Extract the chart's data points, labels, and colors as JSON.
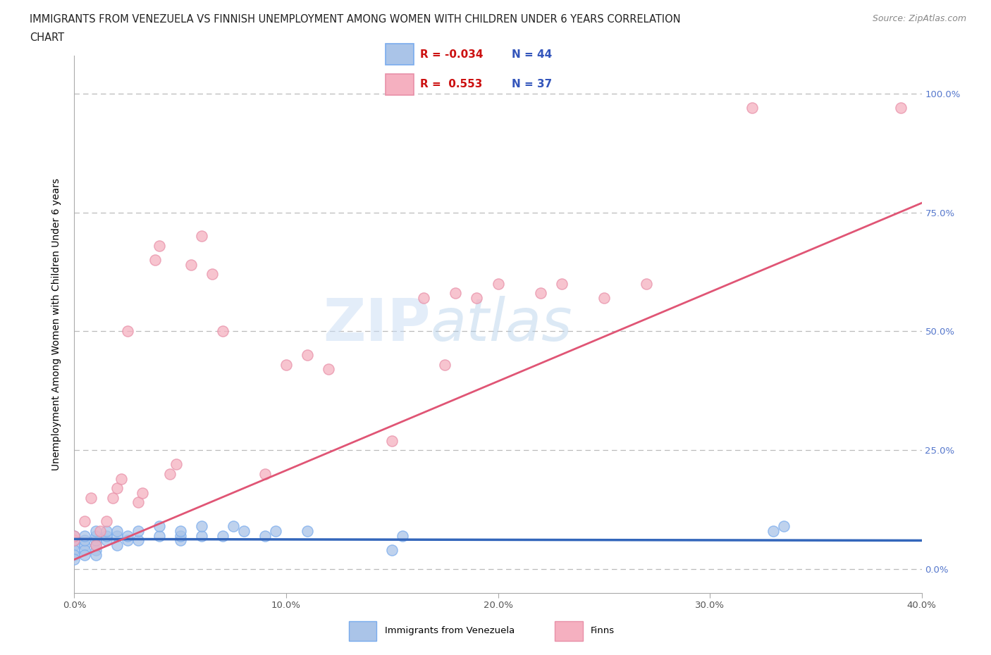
{
  "title_line1": "IMMIGRANTS FROM VENEZUELA VS FINNISH UNEMPLOYMENT AMONG WOMEN WITH CHILDREN UNDER 6 YEARS CORRELATION",
  "title_line2": "CHART",
  "source": "Source: ZipAtlas.com",
  "ylabel": "Unemployment Among Women with Children Under 6 years",
  "xlim": [
    0.0,
    0.4
  ],
  "ylim": [
    -0.05,
    1.08
  ],
  "xtick_labels": [
    "0.0%",
    "10.0%",
    "20.0%",
    "30.0%",
    "40.0%"
  ],
  "xtick_values": [
    0.0,
    0.1,
    0.2,
    0.3,
    0.4
  ],
  "ytick_labels": [
    "0.0%",
    "25.0%",
    "50.0%",
    "75.0%",
    "100.0%"
  ],
  "ytick_values": [
    0.0,
    0.25,
    0.5,
    0.75,
    1.0
  ],
  "grid_color": "#bbbbbb",
  "background_color": "#ffffff",
  "series1_color": "#aac4e8",
  "series2_color": "#f5b0c0",
  "series1_edge": "#7aaced",
  "series2_edge": "#e890a8",
  "line1_color": "#3366bb",
  "line2_color": "#e05575",
  "R1": -0.034,
  "N1": 44,
  "R2": 0.553,
  "N2": 37,
  "legend_label1": "Immigrants from Venezuela",
  "legend_label2": "Finns",
  "watermark_text": "ZIP",
  "watermark_text2": "atlas",
  "title_color": "#222222",
  "ytick_color": "#5577cc",
  "xtick_color": "#555555",
  "series1_x": [
    0.0,
    0.0,
    0.0,
    0.0,
    0.0,
    0.0,
    0.005,
    0.005,
    0.005,
    0.005,
    0.005,
    0.01,
    0.01,
    0.01,
    0.01,
    0.01,
    0.01,
    0.015,
    0.015,
    0.015,
    0.02,
    0.02,
    0.02,
    0.025,
    0.025,
    0.03,
    0.03,
    0.04,
    0.04,
    0.05,
    0.05,
    0.05,
    0.06,
    0.06,
    0.07,
    0.075,
    0.08,
    0.09,
    0.095,
    0.11,
    0.15,
    0.155,
    0.33,
    0.335
  ],
  "series1_y": [
    0.05,
    0.04,
    0.03,
    0.02,
    0.06,
    0.07,
    0.05,
    0.04,
    0.06,
    0.07,
    0.03,
    0.04,
    0.05,
    0.06,
    0.07,
    0.08,
    0.03,
    0.06,
    0.07,
    0.08,
    0.05,
    0.07,
    0.08,
    0.06,
    0.07,
    0.06,
    0.08,
    0.07,
    0.09,
    0.06,
    0.07,
    0.08,
    0.07,
    0.09,
    0.07,
    0.09,
    0.08,
    0.07,
    0.08,
    0.08,
    0.04,
    0.07,
    0.08,
    0.09
  ],
  "series2_x": [
    0.0,
    0.0,
    0.005,
    0.008,
    0.01,
    0.012,
    0.015,
    0.018,
    0.02,
    0.022,
    0.025,
    0.03,
    0.032,
    0.038,
    0.04,
    0.045,
    0.048,
    0.055,
    0.06,
    0.065,
    0.07,
    0.09,
    0.1,
    0.11,
    0.12,
    0.15,
    0.165,
    0.175,
    0.18,
    0.19,
    0.2,
    0.22,
    0.23,
    0.25,
    0.27,
    0.32,
    0.39
  ],
  "series2_y": [
    0.06,
    0.07,
    0.1,
    0.15,
    0.05,
    0.08,
    0.1,
    0.15,
    0.17,
    0.19,
    0.5,
    0.14,
    0.16,
    0.65,
    0.68,
    0.2,
    0.22,
    0.64,
    0.7,
    0.62,
    0.5,
    0.2,
    0.43,
    0.45,
    0.42,
    0.27,
    0.57,
    0.43,
    0.58,
    0.57,
    0.6,
    0.58,
    0.6,
    0.57,
    0.6,
    0.97,
    0.97
  ],
  "trend1_x0": 0.0,
  "trend1_x1": 0.4,
  "trend1_y0": 0.063,
  "trend1_y1": 0.06,
  "trend2_x0": 0.0,
  "trend2_x1": 0.4,
  "trend2_y0": 0.02,
  "trend2_y1": 0.77
}
